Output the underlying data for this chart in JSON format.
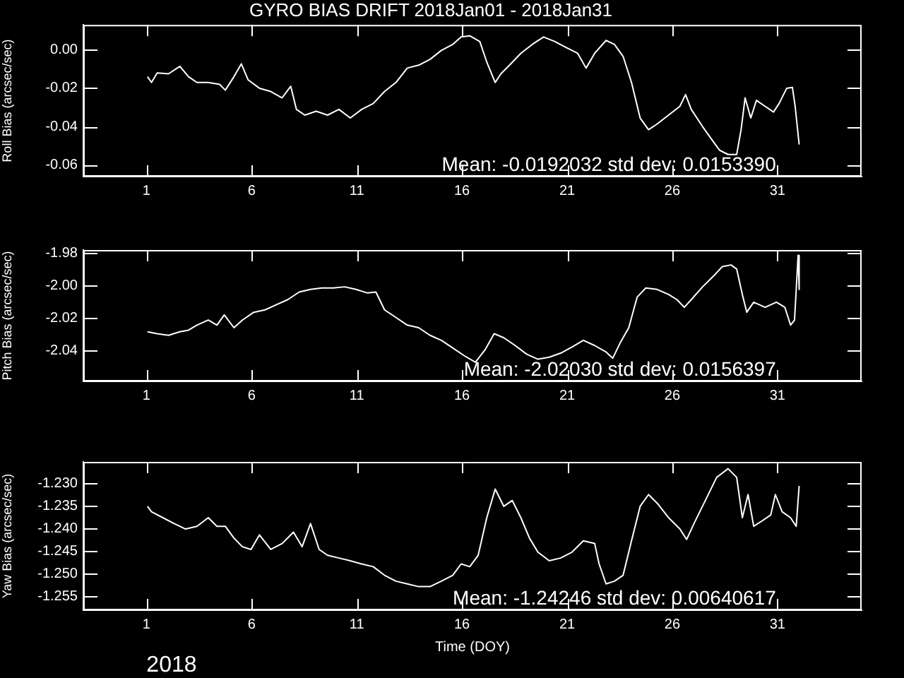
{
  "chart_data": [
    {
      "type": "line",
      "title": "GYRO BIAS DRIFT 2018Jan01 - 2018Jan31",
      "ylabel": "Roll Bias (arcsec/sec)",
      "annotations": [
        "Mean: -0.0192032 std dev: 0.0153390"
      ],
      "color": "#ffffff",
      "grid": false,
      "marker": "none",
      "line_style": "solid",
      "xlim": [
        -2,
        35
      ],
      "xticks": [
        1,
        6,
        11,
        16,
        21,
        26,
        31
      ],
      "ylim": [
        -0.066,
        0.013
      ],
      "yticks": [
        -0.06,
        -0.04,
        -0.02,
        {
          "value": 0,
          "label": "0.00"
        }
      ],
      "x": [
        1.05,
        1.24,
        1.51,
        2.05,
        2.59,
        3.0,
        3.4,
        3.94,
        4.48,
        4.75,
        5.16,
        5.51,
        5.83,
        6.37,
        6.91,
        7.45,
        7.86,
        8.13,
        8.53,
        9.07,
        9.61,
        10.15,
        10.69,
        11.23,
        11.78,
        12.32,
        12.86,
        13.4,
        13.94,
        14.48,
        15.02,
        15.56,
        15.96,
        16.37,
        16.85,
        17.18,
        17.58,
        17.85,
        18.26,
        18.8,
        19.34,
        19.88,
        20.42,
        20.96,
        21.5,
        21.9,
        22.31,
        22.85,
        23.25,
        23.66,
        24.06,
        24.47,
        24.87,
        25.28,
        25.82,
        26.36,
        26.63,
        26.9,
        27.44,
        27.84,
        28.25,
        28.65,
        29.06,
        29.27,
        29.46,
        29.73,
        30.0,
        30.41,
        30.81,
        31.08,
        31.44,
        31.71,
        31.84,
        32.03
      ],
      "values": [
        -0.014,
        -0.017,
        -0.012,
        -0.0125,
        -0.0086,
        -0.014,
        -0.017,
        -0.017,
        -0.018,
        -0.021,
        -0.014,
        -0.0073,
        -0.0156,
        -0.02,
        -0.0217,
        -0.025,
        -0.019,
        -0.031,
        -0.034,
        -0.032,
        -0.034,
        -0.031,
        -0.0355,
        -0.031,
        -0.028,
        -0.0217,
        -0.017,
        -0.0095,
        -0.008,
        -0.005,
        -0.0003,
        0.0028,
        0.0067,
        0.0073,
        0.0043,
        -0.0064,
        -0.017,
        -0.0125,
        -0.008,
        -0.0018,
        0.0028,
        0.0067,
        0.0043,
        0.0012,
        -0.0018,
        -0.0095,
        -0.0018,
        0.0049,
        0.0028,
        -0.0034,
        -0.017,
        -0.0355,
        -0.0416,
        -0.0386,
        -0.034,
        -0.0294,
        -0.0233,
        -0.031,
        -0.04,
        -0.0462,
        -0.0523,
        -0.0545,
        -0.0545,
        -0.0416,
        -0.025,
        -0.0355,
        -0.0263,
        -0.0294,
        -0.0324,
        -0.0279,
        -0.02,
        -0.0196,
        -0.0294,
        -0.0493
      ]
    },
    {
      "type": "line",
      "ylabel": "Pitch Bias (arcsec/sec)",
      "annotations": [
        "Mean: -2.02030 std dev: 0.0156397"
      ],
      "color": "#ffffff",
      "grid": false,
      "marker": "none",
      "line_style": "solid",
      "xlim": [
        -2,
        35
      ],
      "xticks": [
        1,
        6,
        11,
        16,
        21,
        26,
        31
      ],
      "ylim": [
        -2.059,
        -1.978
      ],
      "yticks": [
        -2.04,
        -2.02,
        {
          "value": -2.0,
          "label": "-2.00"
        },
        -1.98
      ],
      "x": [
        1.05,
        1.51,
        2.05,
        2.59,
        3.0,
        3.4,
        3.94,
        4.35,
        4.7,
        5.16,
        5.56,
        6.1,
        6.64,
        7.18,
        7.72,
        8.26,
        8.8,
        9.34,
        9.88,
        10.42,
        10.96,
        11.51,
        11.91,
        12.32,
        12.86,
        13.4,
        13.94,
        14.48,
        15.02,
        15.56,
        16.1,
        16.64,
        17.12,
        17.53,
        17.99,
        18.53,
        19.07,
        19.61,
        20.15,
        20.69,
        21.23,
        21.77,
        22.31,
        22.85,
        23.17,
        23.52,
        23.93,
        24.33,
        24.74,
        25.28,
        25.82,
        26.22,
        26.57,
        26.9,
        27.44,
        27.98,
        28.38,
        28.79,
        29.06,
        29.33,
        29.54,
        29.87,
        30.41,
        30.95,
        31.35,
        31.62,
        31.81,
        31.98,
        32.03
      ],
      "values": [
        -2.0284,
        -2.0296,
        -2.0306,
        -2.0284,
        -2.0274,
        -2.0243,
        -2.0212,
        -2.0243,
        -2.018,
        -2.0259,
        -2.0212,
        -2.0164,
        -2.0149,
        -2.0117,
        -2.0086,
        -2.0039,
        -2.0023,
        -2.0014,
        -2.0014,
        -2.0007,
        -2.0023,
        -2.0045,
        -2.0039,
        -2.0149,
        -2.0196,
        -2.0243,
        -2.0259,
        -2.0306,
        -2.0337,
        -2.0384,
        -2.0431,
        -2.0472,
        -2.0391,
        -2.0296,
        -2.0321,
        -2.0369,
        -2.0422,
        -2.0453,
        -2.0441,
        -2.0416,
        -2.0378,
        -2.0337,
        -2.0369,
        -2.0409,
        -2.0447,
        -2.0353,
        -2.0259,
        -2.007,
        -2.0014,
        -2.0023,
        -2.0054,
        -2.0086,
        -2.0133,
        -2.0086,
        -2.0007,
        -1.9938,
        -1.9882,
        -1.9872,
        -1.9897,
        -2.0054,
        -2.0164,
        -2.0102,
        -2.0133,
        -2.0102,
        -2.0133,
        -2.0243,
        -2.0212,
        -1.9813,
        -2.0023
      ]
    },
    {
      "type": "line",
      "xlabel": "Time (DOY)",
      "ylabel": "Yaw Bias (arcsec/sec)",
      "annotations": [
        "Mean: -1.24246 std dev: 0.00640617",
        "2018"
      ],
      "color": "#ffffff",
      "grid": false,
      "marker": "none",
      "line_style": "solid",
      "xlim": [
        -2,
        35
      ],
      "xticks": [
        1,
        6,
        11,
        16,
        21,
        26,
        31
      ],
      "ylim": [
        -1.258,
        -1.2253
      ],
      "yticks": [
        {
          "value": -1.255,
          "label": "-1.255"
        },
        {
          "value": -1.25,
          "label": "-1.250"
        },
        {
          "value": -1.245,
          "label": "-1.245"
        },
        {
          "value": -1.24,
          "label": "-1.240"
        },
        {
          "value": -1.235,
          "label": "-1.235"
        },
        {
          "value": -1.23,
          "label": "-1.230"
        }
      ],
      "x": [
        1.05,
        1.24,
        1.78,
        2.32,
        2.86,
        3.4,
        3.94,
        4.35,
        4.75,
        5.16,
        5.56,
        5.97,
        6.37,
        6.91,
        7.45,
        7.99,
        8.4,
        8.8,
        9.21,
        9.61,
        10.15,
        10.69,
        11.23,
        11.78,
        12.32,
        12.86,
        13.4,
        13.94,
        14.48,
        15.02,
        15.56,
        15.96,
        16.37,
        16.77,
        17.18,
        17.58,
        17.99,
        18.39,
        18.8,
        19.21,
        19.61,
        20.15,
        20.69,
        21.23,
        21.77,
        22.31,
        22.52,
        22.85,
        23.25,
        23.66,
        24.06,
        24.47,
        24.87,
        25.28,
        25.82,
        26.36,
        26.68,
        27.03,
        27.57,
        28.11,
        28.65,
        29.06,
        29.33,
        29.6,
        29.87,
        30.27,
        30.68,
        30.9,
        31.22,
        31.62,
        31.89,
        32.03
      ],
      "values": [
        -1.2351,
        -1.2363,
        -1.2376,
        -1.2389,
        -1.2401,
        -1.2395,
        -1.2376,
        -1.2395,
        -1.2395,
        -1.2421,
        -1.244,
        -1.2446,
        -1.2414,
        -1.2446,
        -1.2433,
        -1.2408,
        -1.244,
        -1.2389,
        -1.2446,
        -1.2459,
        -1.2465,
        -1.2471,
        -1.2478,
        -1.2484,
        -1.2503,
        -1.2516,
        -1.2522,
        -1.2528,
        -1.2528,
        -1.2516,
        -1.2503,
        -1.2478,
        -1.2484,
        -1.2459,
        -1.2376,
        -1.2313,
        -1.2351,
        -1.2338,
        -1.2376,
        -1.2421,
        -1.2452,
        -1.2471,
        -1.2465,
        -1.2452,
        -1.2427,
        -1.2433,
        -1.2478,
        -1.2522,
        -1.2516,
        -1.2503,
        -1.2427,
        -1.2351,
        -1.2325,
        -1.2344,
        -1.2376,
        -1.2401,
        -1.2424,
        -1.2389,
        -1.2338,
        -1.2287,
        -1.2268,
        -1.2287,
        -1.2376,
        -1.2325,
        -1.2395,
        -1.2383,
        -1.237,
        -1.2325,
        -1.2363,
        -1.2376,
        -1.2395,
        -1.2306
      ]
    }
  ]
}
